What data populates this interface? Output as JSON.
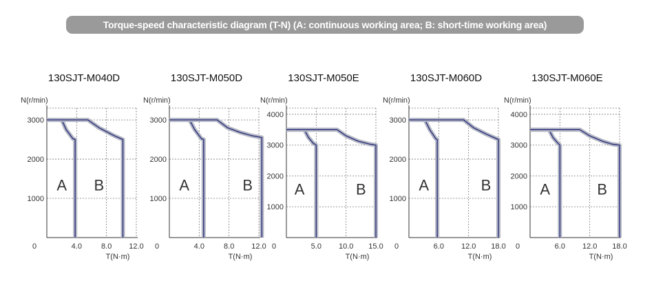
{
  "header": {
    "title": "Torque-speed characteristic diagram (T-N) (A: continuous working area; B: short-time working area)"
  },
  "colors": {
    "banner": "#9a9a9a",
    "curve": "#2a2f7a",
    "band": "#b5b8c4"
  },
  "chart_data": [
    {
      "type": "line",
      "title": "130SJT-M040D",
      "ylabel": "N(r/min)",
      "xlabel": "T(N·m)",
      "xlim": [
        0,
        12.0
      ],
      "ylim": [
        0,
        3300
      ],
      "xticks": [
        "4.0",
        "8.0",
        "12.0"
      ],
      "xtick_values": [
        4,
        8,
        12
      ],
      "yticks": [
        "1000",
        "2000",
        "3000"
      ],
      "ytick_values": [
        1000,
        2000,
        3000
      ],
      "origin_label": "0",
      "region_a_label": "A",
      "region_b_label": "B",
      "region_a_pos": [
        2.0,
        1200
      ],
      "region_b_pos": [
        7.0,
        1200
      ],
      "series": [
        {
          "region": "A",
          "x": [
            0,
            2.0,
            2.6,
            3.5,
            3.8,
            3.8
          ],
          "y": [
            3000,
            3000,
            2750,
            2520,
            2500,
            0
          ]
        },
        {
          "region": "B",
          "x": [
            0,
            5.5,
            7.0,
            9.0,
            10.2,
            10.2
          ],
          "y": [
            3000,
            3000,
            2800,
            2600,
            2500,
            0
          ]
        }
      ]
    },
    {
      "type": "line",
      "title": "130SJT-M050D",
      "ylabel": "N(r/min)",
      "xlabel": "T(N·m)",
      "xlim": [
        0,
        12.0
      ],
      "ylim": [
        0,
        3300
      ],
      "xticks": [
        "4.0",
        "8.0",
        "12.0"
      ],
      "xtick_values": [
        4,
        8,
        12
      ],
      "yticks": [
        "1000",
        "2000",
        "3000"
      ],
      "ytick_values": [
        1000,
        2000,
        3000
      ],
      "origin_label": "0",
      "region_a_label": "A",
      "region_b_label": "B",
      "region_a_pos": [
        2.0,
        1200
      ],
      "region_b_pos": [
        10.5,
        1200
      ],
      "series": [
        {
          "region": "A",
          "x": [
            0,
            2.7,
            3.4,
            4.3,
            4.6,
            4.6
          ],
          "y": [
            3000,
            3000,
            2750,
            2520,
            2500,
            0
          ]
        },
        {
          "region": "B",
          "x": [
            0,
            6.4,
            7.8,
            9.5,
            11.0,
            12.4,
            12.4
          ],
          "y": [
            3000,
            3000,
            2800,
            2680,
            2600,
            2550,
            0
          ]
        }
      ]
    },
    {
      "type": "line",
      "title": "130SJT-M050E",
      "ylabel": "N(r/min)",
      "xlabel": "T(N·m)",
      "xlim": [
        0,
        15.0
      ],
      "ylim": [
        0,
        4200
      ],
      "xticks": [
        "5.0",
        "10.0",
        "15.0"
      ],
      "xtick_values": [
        5,
        10,
        15
      ],
      "yticks": [
        "1000",
        "2000",
        "3000",
        "4000"
      ],
      "ytick_values": [
        1000,
        2000,
        3000,
        4000
      ],
      "origin_label": "0",
      "region_a_label": "A",
      "region_b_label": "B",
      "region_a_pos": [
        2.2,
        1400
      ],
      "region_b_pos": [
        12.5,
        1400
      ],
      "series": [
        {
          "region": "A",
          "x": [
            0,
            3.0,
            3.7,
            4.5,
            5.0,
            5.0
          ],
          "y": [
            3500,
            3500,
            3250,
            3060,
            3000,
            0
          ]
        },
        {
          "region": "B",
          "x": [
            0,
            8.5,
            10.0,
            12.0,
            14.0,
            15.0,
            15.0
          ],
          "y": [
            3500,
            3500,
            3300,
            3130,
            3030,
            3000,
            0
          ]
        }
      ]
    },
    {
      "type": "line",
      "title": "130SJT-M060D",
      "ylabel": "N(r/min)",
      "xlabel": "T(N·m)",
      "xlim": [
        0,
        18.0
      ],
      "ylim": [
        0,
        3300
      ],
      "xticks": [
        "6.0",
        "12.0",
        "18.0"
      ],
      "xtick_values": [
        6,
        12,
        18
      ],
      "yticks": [
        "1000",
        "2000",
        "3000"
      ],
      "ytick_values": [
        1000,
        2000,
        3000
      ],
      "origin_label": "0",
      "region_a_label": "A",
      "region_b_label": "B",
      "region_a_pos": [
        3.0,
        1200
      ],
      "region_b_pos": [
        15.5,
        1200
      ],
      "series": [
        {
          "region": "A",
          "x": [
            0,
            3.2,
            4.2,
            5.4,
            5.7,
            5.7
          ],
          "y": [
            3000,
            3000,
            2750,
            2520,
            2500,
            0
          ]
        },
        {
          "region": "B",
          "x": [
            0,
            11.0,
            13.0,
            15.5,
            18.0,
            18.0
          ],
          "y": [
            3000,
            3000,
            2800,
            2640,
            2500,
            0
          ]
        }
      ]
    },
    {
      "type": "line",
      "title": "130SJT-M060E",
      "ylabel": "N(r/min)",
      "xlabel": "T(N·m)",
      "xlim": [
        0,
        18.0
      ],
      "ylim": [
        0,
        4200
      ],
      "xticks": [
        "6.0",
        "12.0",
        "18.0"
      ],
      "xtick_values": [
        6,
        12,
        18
      ],
      "yticks": [
        "1000",
        "2000",
        "3000",
        "4000"
      ],
      "ytick_values": [
        1000,
        2000,
        3000,
        4000
      ],
      "origin_label": "0",
      "region_a_label": "A",
      "region_b_label": "B",
      "region_a_pos": [
        3.0,
        1400
      ],
      "region_b_pos": [
        14.5,
        1400
      ],
      "series": [
        {
          "region": "A",
          "x": [
            0,
            3.8,
            4.6,
            5.6,
            6.0,
            6.0
          ],
          "y": [
            3500,
            3500,
            3250,
            3060,
            3000,
            0
          ]
        },
        {
          "region": "B",
          "x": [
            0,
            10.0,
            12.0,
            14.5,
            16.5,
            18.0,
            18.0
          ],
          "y": [
            3500,
            3500,
            3300,
            3130,
            3030,
            3000,
            0
          ]
        }
      ]
    }
  ]
}
